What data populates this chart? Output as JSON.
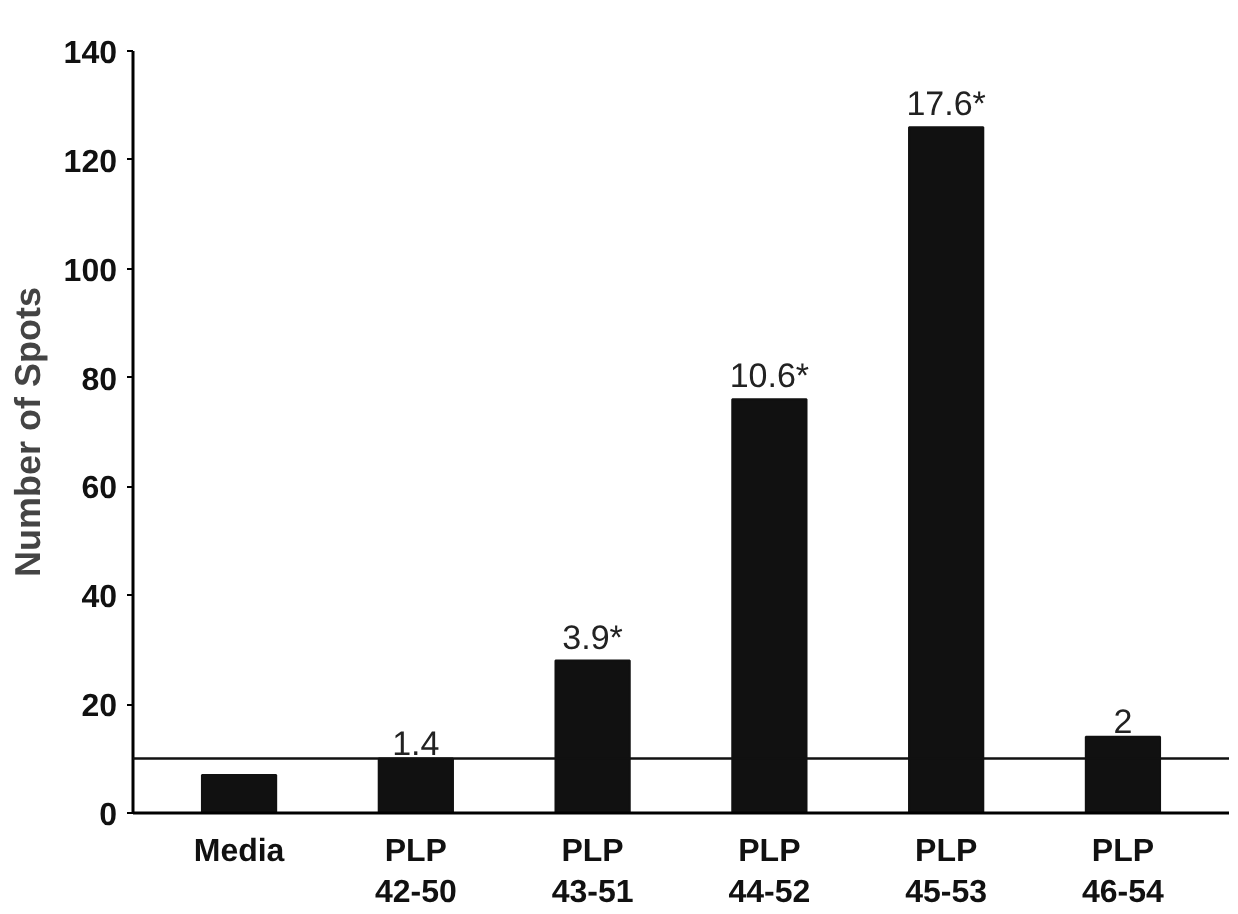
{
  "chart_data": {
    "type": "bar",
    "ylabel": "Number of Spots",
    "categories": [
      "Media",
      "PLP\n42-50",
      "PLP\n43-51",
      "PLP\n44-52",
      "PLP\n45-53",
      "PLP\n46-54"
    ],
    "values": [
      7,
      10,
      28,
      76,
      126,
      14
    ],
    "annotations": [
      {
        "text": "1.4",
        "x": "PLP\n42-50",
        "y": 10
      },
      {
        "text": "3.9*",
        "x": "PLP\n43-51",
        "y": 28
      },
      {
        "text": "10.6*",
        "x": "PLP\n44-52",
        "y": 76
      },
      {
        "text": "17.6*",
        "x": "PLP\n45-53",
        "y": 126
      },
      {
        "text": "2",
        "x": "PLP\n46-54",
        "y": 14
      }
    ],
    "color": "#111111",
    "ylim": [
      0,
      140
    ],
    "yticks": [
      0,
      20,
      40,
      60,
      80,
      100,
      120,
      140
    ],
    "grid": false,
    "ref_lines": [
      {
        "axis": "y",
        "value": 10,
        "color": "#111111"
      }
    ]
  }
}
